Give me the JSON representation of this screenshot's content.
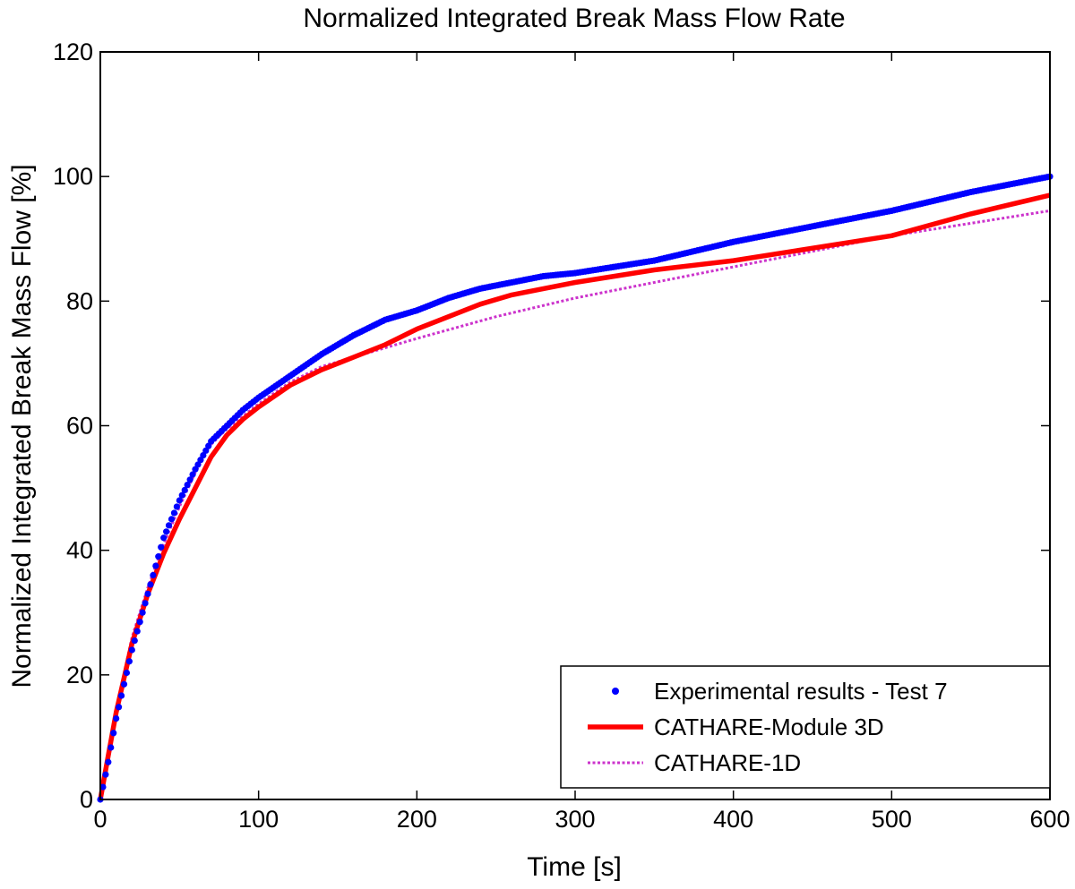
{
  "chart_data": {
    "type": "line",
    "title": "Normalized Integrated Break Mass Flow Rate",
    "xlabel": "Time [s]",
    "ylabel": "Normalized Integrated Break Mass Flow [%]",
    "xlim": [
      0,
      600
    ],
    "ylim": [
      0,
      120
    ],
    "xticks": [
      0,
      100,
      200,
      300,
      400,
      500,
      600
    ],
    "yticks": [
      0,
      20,
      40,
      60,
      80,
      100,
      120
    ],
    "grid": false,
    "legend_position": "bottom-right",
    "series": [
      {
        "name": "Experimental results - Test 7",
        "style": "dots",
        "color": "#0000ff",
        "x": [
          0,
          5,
          10,
          20,
          30,
          40,
          50,
          60,
          70,
          80,
          90,
          100,
          120,
          140,
          160,
          180,
          200,
          220,
          240,
          260,
          280,
          300,
          350,
          400,
          450,
          500,
          550,
          600
        ],
        "y": [
          0,
          6,
          13,
          24,
          33,
          42,
          48,
          53,
          57.5,
          60,
          62.5,
          64.5,
          68,
          71.5,
          74.5,
          77,
          78.5,
          80.5,
          82,
          83,
          84,
          84.5,
          86.5,
          89.5,
          92,
          94.5,
          97.5,
          100
        ]
      },
      {
        "name": "CATHARE-Module 3D",
        "style": "solid",
        "color": "#ff0000",
        "x": [
          0,
          5,
          10,
          20,
          30,
          40,
          50,
          60,
          70,
          80,
          90,
          100,
          120,
          140,
          160,
          180,
          200,
          220,
          240,
          260,
          280,
          300,
          350,
          400,
          450,
          500,
          550,
          600
        ],
        "y": [
          0,
          7,
          14,
          25,
          33,
          39.5,
          45,
          50,
          55,
          58.5,
          61,
          63,
          66.5,
          69,
          71,
          73,
          75.5,
          77.5,
          79.5,
          81,
          82,
          83,
          85,
          86.5,
          88.5,
          90.5,
          94,
          97
        ]
      },
      {
        "name": "CATHARE-1D",
        "style": "dotted",
        "color": "#cc33cc",
        "x": [
          0,
          5,
          10,
          20,
          30,
          40,
          50,
          60,
          70,
          80,
          90,
          100,
          120,
          140,
          160,
          180,
          200,
          250,
          300,
          350,
          400,
          450,
          500,
          550,
          600
        ],
        "y": [
          0,
          7.5,
          14.5,
          26,
          34,
          41,
          47,
          52.5,
          57,
          59.5,
          61.5,
          63.5,
          67,
          69.5,
          71,
          72.5,
          74,
          77.5,
          80.5,
          83,
          85.5,
          88,
          90.5,
          92.5,
          94.5
        ]
      }
    ]
  }
}
